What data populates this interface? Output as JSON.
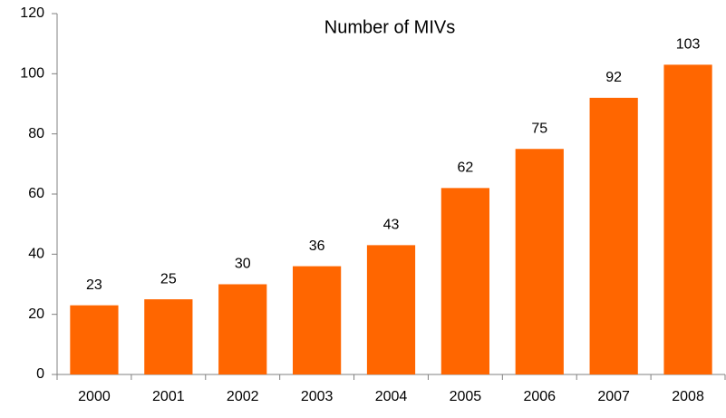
{
  "chart_data": {
    "type": "bar",
    "title": "Number of MIVs",
    "categories": [
      "2000",
      "2001",
      "2002",
      "2003",
      "2004",
      "2005",
      "2006",
      "2007",
      "2008"
    ],
    "values": [
      23,
      25,
      30,
      36,
      43,
      62,
      75,
      92,
      103
    ],
    "color": "#ff6600",
    "ylim": [
      0,
      120
    ],
    "yticks": [
      0,
      20,
      40,
      60,
      80,
      100,
      120
    ],
    "grid": false
  }
}
